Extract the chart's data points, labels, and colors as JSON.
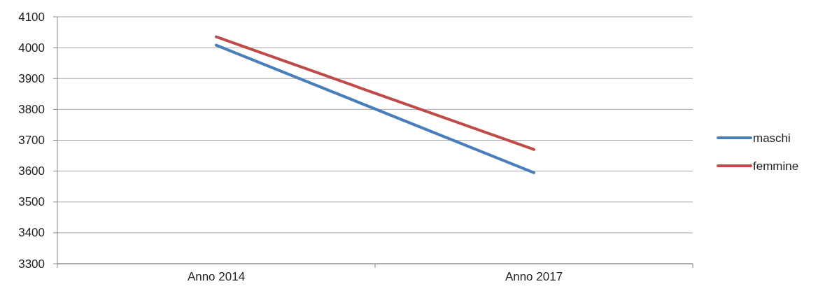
{
  "chart_data": {
    "type": "line",
    "categories": [
      "Anno 2014",
      "Anno 2017"
    ],
    "series": [
      {
        "name": "maschi",
        "color": "#4a7ebb",
        "values": [
          4008,
          3595
        ]
      },
      {
        "name": "femmine",
        "color": "#be4b48",
        "values": [
          4035,
          3670
        ]
      }
    ],
    "ylim": [
      3300,
      4100
    ],
    "yticks": [
      3300,
      3400,
      3500,
      3600,
      3700,
      3800,
      3900,
      4000,
      4100
    ],
    "grid": "y",
    "legend": "right",
    "marker": "none",
    "line_style": "solid"
  }
}
